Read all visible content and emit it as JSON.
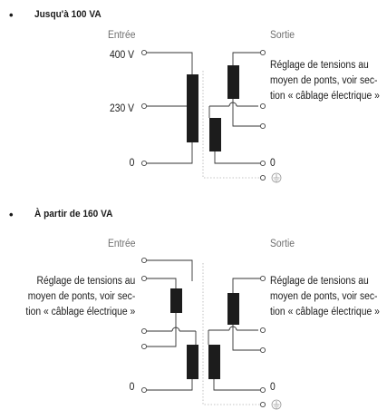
{
  "section1": {
    "heading": "Jusqu'à 100 VA",
    "input_label": "Entrée",
    "output_label": "Sortie",
    "voltages": [
      "400 V",
      "230 V",
      "0"
    ],
    "output_zero": "0",
    "note_output": [
      "Réglage de tensions au",
      "moyen de ponts, voir sec-",
      "tion « câblage électrique »"
    ]
  },
  "section2": {
    "heading": "À partir de 160 VA",
    "input_label": "Entrée",
    "output_label": "Sortie",
    "input_zero": "0",
    "output_zero": "0",
    "note_input": [
      "Réglage de tensions au",
      "moyen de ponts, voir sec-",
      "tion « câblage électrique »"
    ],
    "note_output": [
      "Réglage de tensions au",
      "moyen de ponts, voir sec-",
      "tion « câblage électrique »"
    ]
  },
  "icons": {
    "bullet": "bullet",
    "terminal": "terminal-circle",
    "ground": "ground-symbol"
  },
  "colors": {
    "line": "#333333",
    "winding": "#1c1c1c",
    "dotted": "#b3b3b3",
    "ground": "#9a9a9a"
  }
}
